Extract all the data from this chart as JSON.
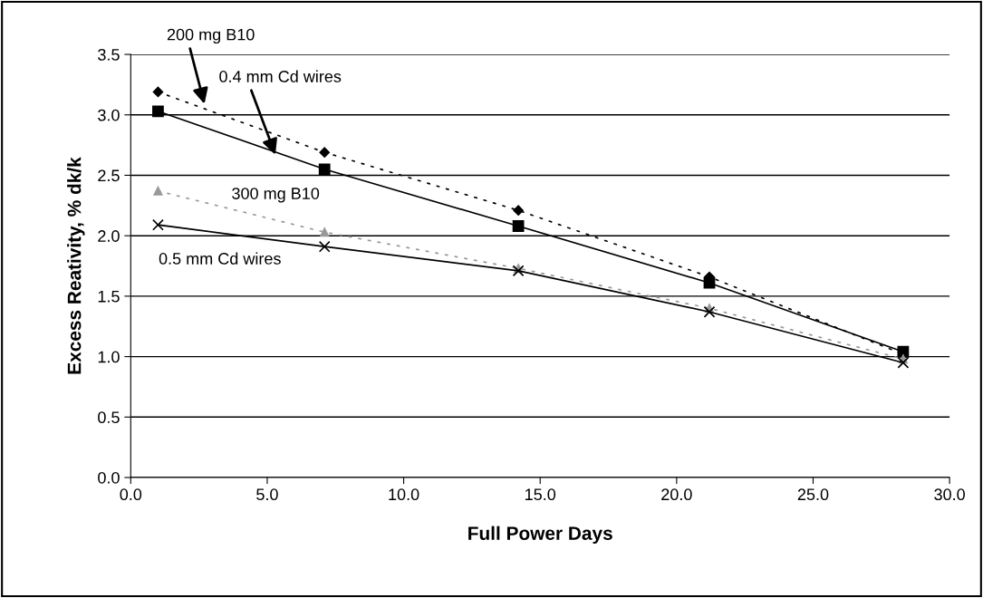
{
  "chart_data": {
    "type": "line",
    "xlabel": "Full Power Days",
    "ylabel": "Excess Reativity, % dk/k",
    "xlim": [
      0,
      30
    ],
    "ylim": [
      0,
      3.5
    ],
    "xticks": [
      {
        "value": 0,
        "label": "0.0"
      },
      {
        "value": 5,
        "label": "5.0"
      },
      {
        "value": 10,
        "label": "10.0"
      },
      {
        "value": 15,
        "label": "15.0"
      },
      {
        "value": 20,
        "label": "20.0"
      },
      {
        "value": 25,
        "label": "25.0"
      },
      {
        "value": 30,
        "label": "30.0"
      }
    ],
    "yticks": [
      {
        "value": 0,
        "label": "0.0"
      },
      {
        "value": 0.5,
        "label": "0.5"
      },
      {
        "value": 1,
        "label": "1.0"
      },
      {
        "value": 1.5,
        "label": "1.5"
      },
      {
        "value": 2,
        "label": "2.0"
      },
      {
        "value": 2.5,
        "label": "2.5"
      },
      {
        "value": 3,
        "label": "3.0"
      },
      {
        "value": 3.5,
        "label": "3.5"
      }
    ],
    "grid": "y",
    "x": [
      1.0,
      7.1,
      14.2,
      21.2,
      28.3
    ],
    "series": [
      {
        "color": "#000000",
        "marker": "diamond",
        "line_style": "dotted",
        "values": [
          3.19,
          2.69,
          2.21,
          1.66,
          1.02
        ]
      },
      {
        "color": "#000000",
        "marker": "square",
        "line_style": "solid",
        "values": [
          3.03,
          2.55,
          2.08,
          1.61,
          1.04
        ]
      },
      {
        "color": "#999999",
        "marker": "triangle",
        "line_style": "dotted",
        "values": [
          2.37,
          2.03,
          1.73,
          1.4,
          0.98
        ]
      },
      {
        "color": "#000000",
        "marker": "cross",
        "line_style": "solid",
        "values": [
          2.09,
          1.91,
          1.71,
          1.37,
          0.95
        ]
      }
    ],
    "annotations": [
      {
        "text": "200 mg B10",
        "x": 2.7,
        "y": 3.09
      },
      {
        "text": "0.4 mm Cd wires",
        "x": 5.3,
        "y": 2.67
      },
      "300 mg B10",
      "0.5 mm Cd wires"
    ]
  }
}
